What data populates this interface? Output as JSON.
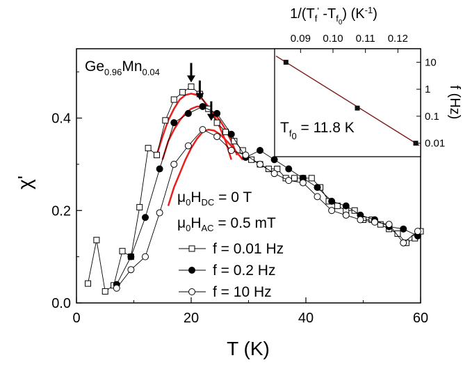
{
  "chart_data": {
    "type": "scatter",
    "compound": {
      "base": "Ge",
      "sub1": "0.96",
      "dopant": "Mn",
      "sub2": "0.04"
    },
    "xlabel": "T (K)",
    "ylabel": "χ'",
    "xlim": [
      0,
      60
    ],
    "ylim": [
      0.0,
      0.55
    ],
    "x_ticks": [
      "0",
      "20",
      "40",
      "60"
    ],
    "y_ticks": [
      "0.0",
      "0.2",
      "0.4"
    ],
    "conditions": {
      "hdc": {
        "pre": "μ",
        "sub0": "0",
        "mid": "H",
        "sub1": "DC",
        "post": " = 0 T"
      },
      "hac": {
        "pre": "μ",
        "sub0": "0",
        "mid": "H",
        "sub1": "AC",
        "post": " = 0.5 mT"
      }
    },
    "series": [
      {
        "name": "f = 0.01 Hz",
        "marker": "square-open",
        "x": [
          2,
          3.5,
          5,
          6.5,
          8,
          9.5,
          11,
          12.5,
          14,
          15.5,
          17,
          18.5,
          20,
          21.5,
          23,
          24.5,
          26,
          27.5,
          29,
          30.5,
          32,
          33.5,
          35,
          36.5,
          38,
          39.5,
          41,
          42.5,
          44,
          45.5,
          47,
          48.5,
          50,
          51.5,
          53,
          54.5,
          56,
          57.5,
          59,
          60
        ],
        "y": [
          0.042,
          0.136,
          0.025,
          0.038,
          0.112,
          0.1,
          0.207,
          0.335,
          0.32,
          0.395,
          0.44,
          0.456,
          0.468,
          0.452,
          0.42,
          0.39,
          0.37,
          0.35,
          0.33,
          0.31,
          0.3,
          0.29,
          0.29,
          0.27,
          0.27,
          0.27,
          0.27,
          0.25,
          0.22,
          0.21,
          0.2,
          0.2,
          0.18,
          0.18,
          0.17,
          0.16,
          0.15,
          0.13,
          0.14,
          0.155
        ]
      },
      {
        "name": "f = 0.2 Hz",
        "marker": "circle-filled",
        "x": [
          7,
          9.5,
          12,
          14.5,
          17,
          19.5,
          22,
          24.5,
          27,
          29.5,
          32,
          34.5,
          37,
          39.5,
          42,
          44.5,
          47,
          49.5,
          52,
          54.5,
          57,
          59.5
        ],
        "y": [
          0.04,
          0.1,
          0.185,
          0.29,
          0.39,
          0.41,
          0.425,
          0.41,
          0.365,
          0.315,
          0.33,
          0.31,
          0.29,
          0.27,
          0.25,
          0.22,
          0.21,
          0.19,
          0.18,
          0.165,
          0.16,
          0.145
        ]
      },
      {
        "name": "f = 10 Hz",
        "marker": "circle-open",
        "x": [
          7,
          9.5,
          12,
          14.5,
          17,
          19.5,
          22,
          24.5,
          27,
          29.5,
          32,
          34.5,
          37,
          39.5,
          42,
          44.5,
          47,
          49.5,
          52,
          54.5,
          57,
          59.5
        ],
        "y": [
          0.032,
          0.072,
          0.1,
          0.195,
          0.3,
          0.34,
          0.375,
          0.36,
          0.33,
          0.32,
          0.3,
          0.28,
          0.265,
          0.26,
          0.23,
          0.2,
          0.19,
          0.18,
          0.175,
          0.17,
          0.13,
          0.155
        ]
      }
    ],
    "fits": [
      {
        "x": [
          14,
          15,
          16,
          17,
          18,
          19,
          20,
          21,
          22,
          23,
          24,
          25,
          26,
          27
        ],
        "y": [
          0.32,
          0.36,
          0.395,
          0.42,
          0.44,
          0.45,
          0.453,
          0.45,
          0.44,
          0.425,
          0.405,
          0.38,
          0.35,
          0.31
        ],
        "color": "#e8201e"
      },
      {
        "x": [
          15,
          16,
          17,
          18,
          19,
          20,
          21,
          22,
          23,
          24,
          25,
          26,
          27,
          28
        ],
        "y": [
          0.31,
          0.35,
          0.375,
          0.395,
          0.41,
          0.42,
          0.425,
          0.425,
          0.42,
          0.41,
          0.395,
          0.375,
          0.35,
          0.32
        ],
        "color": "#e8201e"
      },
      {
        "x": [
          16,
          17,
          18,
          19,
          20,
          21,
          22,
          23,
          24,
          25,
          26,
          27,
          28,
          29
        ],
        "y": [
          0.21,
          0.25,
          0.28,
          0.31,
          0.335,
          0.355,
          0.37,
          0.375,
          0.373,
          0.365,
          0.353,
          0.34,
          0.325,
          0.31
        ],
        "color": "#e8201e"
      }
    ],
    "peak_arrows_x": [
      20,
      21.5,
      23.5
    ],
    "inset": {
      "top_axis_label": {
        "pre": "1/(T",
        "s1": "f",
        "s1sup": "'",
        "mid": " -T",
        "s2": "f",
        "s2sub": "0",
        "post": ") (K",
        "supexp": "-1",
        "close": ")"
      },
      "right_axis_label": "f (Hz)",
      "x_ticks": [
        "0.09",
        "0.10",
        "0.11",
        "0.12"
      ],
      "y_ticks": [
        "10",
        "1",
        "0.1",
        "0.01"
      ],
      "xlim": [
        0.082,
        0.127
      ],
      "ylim_log": [
        -2.5,
        1.5
      ],
      "points": [
        {
          "x": 0.0855,
          "f": 10
        },
        {
          "x": 0.1075,
          "f": 0.2
        },
        {
          "x": 0.1255,
          "f": 0.01
        }
      ],
      "annotation": {
        "pre": "T",
        "sub": "f",
        "subsub": "0",
        "post": " = 11.8 K"
      }
    }
  }
}
